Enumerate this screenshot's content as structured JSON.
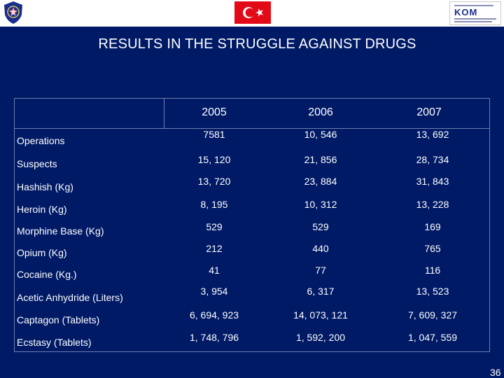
{
  "title": "RESULTS IN THE STRUGGLE AGAINST DRUGS",
  "years": [
    "2005",
    "2006",
    "2007"
  ],
  "rows": [
    {
      "label": "Operations",
      "values": [
        "7581",
        "10, 546",
        "13, 692"
      ]
    },
    {
      "label": "Suspects",
      "values": [
        "15, 120",
        "21, 856",
        "28, 734"
      ]
    },
    {
      "label": "Hashish (Kg)",
      "values": [
        "13, 720",
        "23, 884",
        "31, 843"
      ]
    },
    {
      "label": "Heroin (Kg)",
      "values": [
        "8, 195",
        "10, 312",
        "13, 228"
      ]
    },
    {
      "label": "Morphine Base (Kg)",
      "values": [
        "529",
        "529",
        "169"
      ]
    },
    {
      "label": "Opium (Kg)",
      "values": [
        "212",
        "440",
        "765"
      ]
    },
    {
      "label": "Cocaine (Kg.)",
      "values": [
        "41",
        "77",
        "116"
      ]
    },
    {
      "label": "Acetic Anhydride (Liters)",
      "values": [
        "3, 954",
        "6, 317",
        "13, 523"
      ]
    },
    {
      "label": "Captagon (Tablets)",
      "values": [
        "6, 694, 923",
        "14, 073, 121",
        "7, 609, 327"
      ]
    },
    {
      "label": "Ecstasy (Tablets)",
      "values": [
        "1, 748, 796",
        "1, 592, 200",
        "1, 047, 559"
      ]
    }
  ],
  "logos": {
    "right_text": "KOM"
  },
  "page_number": "36",
  "colors": {
    "background": "#001a66",
    "flag_red": "#e30a17",
    "text": "#ffffff"
  }
}
